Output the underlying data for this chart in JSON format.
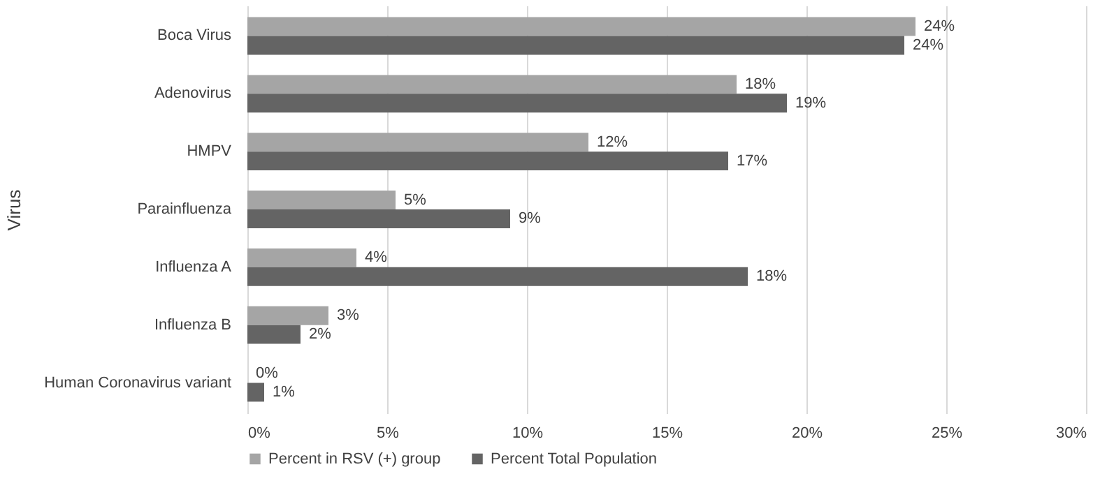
{
  "chart_data": {
    "type": "bar",
    "orientation": "horizontal",
    "ylabel": "Virus",
    "categories": [
      "Boca Virus",
      "Adenovirus",
      "HMPV",
      "Parainfluenza",
      "Influenza A",
      "Influenza B",
      "Human Coronavirus variant"
    ],
    "series": [
      {
        "name": "Percent in RSV (+) group",
        "color": "#a5a5a5",
        "values": [
          23.9,
          17.5,
          12.2,
          5.3,
          3.9,
          2.9,
          0
        ],
        "value_labels": [
          "24%",
          "18%",
          "12%",
          "5%",
          "4%",
          "3%",
          "0%"
        ]
      },
      {
        "name": "Percent Total Population",
        "color": "#646464",
        "values": [
          23.5,
          19.3,
          17.2,
          9.4,
          17.9,
          1.9,
          0.6
        ],
        "value_labels": [
          "24%",
          "19%",
          "17%",
          "9%",
          "18%",
          "2%",
          "1%"
        ]
      }
    ],
    "xlim": [
      0,
      30
    ],
    "xticks": [
      {
        "value": 0,
        "label": "0%"
      },
      {
        "value": 5,
        "label": "5%"
      },
      {
        "value": 10,
        "label": "10%"
      },
      {
        "value": 15,
        "label": "15%"
      },
      {
        "value": 20,
        "label": "20%"
      },
      {
        "value": 25,
        "label": "25%"
      },
      {
        "value": 30,
        "label": "30%"
      }
    ],
    "grid": "x",
    "legend": "bottom"
  }
}
